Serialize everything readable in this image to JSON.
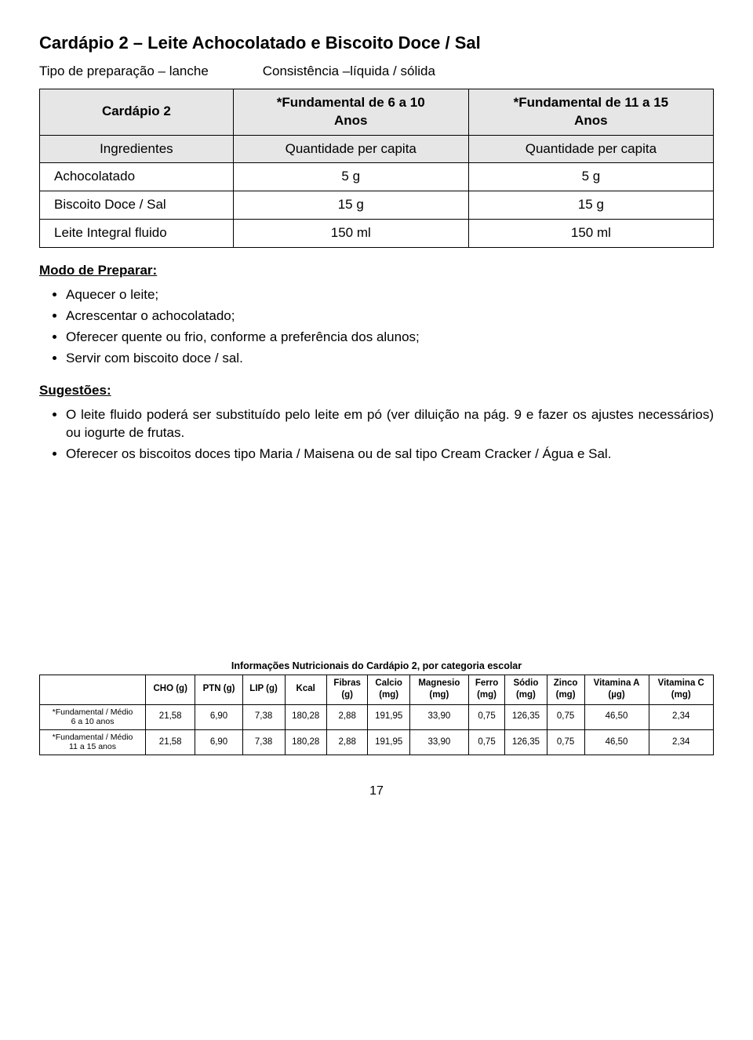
{
  "title": "Cardápio 2 – Leite Achocolatado e Biscoito Doce / Sal",
  "prep_left": "Tipo de preparação – lanche",
  "prep_right": "Consistência –líquida / sólida",
  "main_table": {
    "header_row1": [
      "Cardápio 2",
      "*Fundamental de 6 a 10\nAnos",
      "*Fundamental de 11 a 15\nAnos"
    ],
    "header_row2": [
      "Ingredientes",
      "Quantidade per capita",
      "Quantidade per capita"
    ],
    "rows": [
      [
        "Achocolatado",
        "5 g",
        "5 g"
      ],
      [
        "Biscoito Doce / Sal",
        "15 g",
        "15 g"
      ],
      [
        "Leite Integral fluido",
        "150 ml",
        "150 ml"
      ]
    ]
  },
  "modo_heading": "Modo de Preparar:",
  "modo_items": [
    "Aquecer o leite;",
    "Acrescentar o achocolatado;",
    "Oferecer quente ou frio, conforme a preferência dos alunos;",
    "Servir com biscoito doce / sal."
  ],
  "sugestoes_heading": "Sugestões:",
  "sugestoes_items": [
    "O leite fluido poderá ser substituído pelo leite em pó (ver diluição na pág. 9 e fazer os ajustes necessários) ou iogurte de frutas.",
    "Oferecer os biscoitos doces tipo Maria / Maisena ou de sal tipo Cream Cracker / Água e Sal."
  ],
  "nutri": {
    "caption": "Informações Nutricionais do Cardápio 2, por categoria escolar",
    "columns": [
      "",
      "CHO (g)",
      "PTN (g)",
      "LIP (g)",
      "Kcal",
      "Fibras\n(g)",
      "Calcio\n(mg)",
      "Magnesio\n(mg)",
      "Ferro\n(mg)",
      "Sódio\n(mg)",
      "Zinco\n(mg)",
      "Vitamina A\n(µg)",
      "Vitamina C\n(mg)"
    ],
    "rows": [
      [
        "*Fundamental / Médio\n6 a 10 anos",
        "21,58",
        "6,90",
        "7,38",
        "180,28",
        "2,88",
        "191,95",
        "33,90",
        "0,75",
        "126,35",
        "0,75",
        "46,50",
        "2,34"
      ],
      [
        "*Fundamental / Médio\n11 a 15 anos",
        "21,58",
        "6,90",
        "7,38",
        "180,28",
        "2,88",
        "191,95",
        "33,90",
        "0,75",
        "126,35",
        "0,75",
        "46,50",
        "2,34"
      ]
    ]
  },
  "page_number": "17"
}
